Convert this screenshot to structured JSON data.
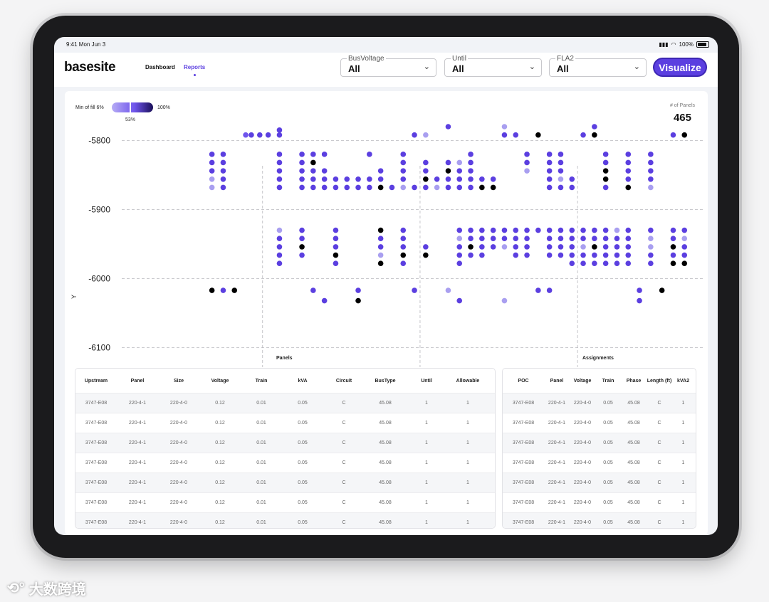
{
  "status": {
    "time": "9:41 Mon Jun 3",
    "battery": "100%"
  },
  "app": {
    "logo": "basesite"
  },
  "nav": [
    {
      "label": "Dashboard",
      "active": false
    },
    {
      "label": "Reports",
      "active": true
    }
  ],
  "filters": [
    {
      "label": "BusVoltage",
      "value": "All"
    },
    {
      "label": "Until",
      "value": "All"
    },
    {
      "label": "FLA2",
      "value": "All"
    }
  ],
  "visualize_label": "Visualize",
  "fill": {
    "min_label": "Min of fill 6%",
    "max_label": "100%",
    "current_label": "53%",
    "current_fraction": 0.53
  },
  "panels_count": {
    "label": "# of Panels",
    "value": "465"
  },
  "colors": {
    "accent": "#5b3fe0",
    "dark": "#3d27b3",
    "mid": "#6f55ec",
    "light": "#a99ff0",
    "black": "#000000"
  },
  "chart_data": {
    "type": "scatter",
    "ylabel": "Y",
    "yticks": [
      -5800,
      -5900,
      -6000,
      -6100
    ],
    "ylim": [
      -6120,
      -5780
    ],
    "xlim": [
      0,
      100
    ],
    "grid": true,
    "columns": [
      {
        "x": 13.5,
        "y": [
          -5820,
          -5832,
          -5844,
          -5856,
          -5868,
          -6017
        ],
        "c": [
          "d",
          "d",
          "d",
          "l",
          "l",
          "k"
        ]
      },
      {
        "x": 15.5,
        "y": [
          -5820,
          -5832,
          -5844,
          -5856,
          -5868,
          -6017
        ],
        "c": [
          "d",
          "d",
          "d",
          "d",
          "d",
          "d"
        ]
      },
      {
        "x": 17.5,
        "y": [
          -6017
        ],
        "c": [
          "k"
        ]
      },
      {
        "x": 19.5,
        "y": [
          -5792
        ],
        "c": [
          "m"
        ]
      },
      {
        "x": 20.5,
        "y": [
          -5792
        ],
        "c": [
          "d"
        ]
      },
      {
        "x": 22,
        "y": [
          -5792
        ],
        "c": [
          "d"
        ]
      },
      {
        "x": 23.5,
        "y": [
          -5792
        ],
        "c": [
          "d"
        ]
      },
      {
        "x": 25.5,
        "y": [
          -5785,
          -5792,
          -5820,
          -5832,
          -5844,
          -5856,
          -5868,
          -5930,
          -5942,
          -5954,
          -5966,
          -5978
        ],
        "c": [
          "d",
          "d",
          "d",
          "d",
          "d",
          "d",
          "d",
          "l",
          "d",
          "d",
          "d",
          "d"
        ]
      },
      {
        "x": 29.5,
        "y": [
          -5820,
          -5832,
          -5844,
          -5856,
          -5868,
          -5930,
          -5942,
          -5954,
          -5966
        ],
        "c": [
          "d",
          "d",
          "d",
          "d",
          "d",
          "d",
          "d",
          "k",
          "d"
        ]
      },
      {
        "x": 31.5,
        "y": [
          -5820,
          -5832,
          -5844,
          -5856,
          -5868,
          -6017
        ],
        "c": [
          "d",
          "k",
          "d",
          "d",
          "d",
          "d"
        ]
      },
      {
        "x": 33.5,
        "y": [
          -5820,
          -5844,
          -5856,
          -5868,
          -6032
        ],
        "c": [
          "d",
          "d",
          "d",
          "d",
          "d"
        ]
      },
      {
        "x": 35.5,
        "y": [
          -5856,
          -5868,
          -5930,
          -5942,
          -5954,
          -5966,
          -5978
        ],
        "c": [
          "d",
          "d",
          "d",
          "d",
          "d",
          "k",
          "d"
        ]
      },
      {
        "x": 37.5,
        "y": [
          -5856,
          -5868
        ],
        "c": [
          "d",
          "d"
        ]
      },
      {
        "x": 39.5,
        "y": [
          -5856,
          -5868,
          -6017,
          -6032
        ],
        "c": [
          "d",
          "d",
          "d",
          "k"
        ]
      },
      {
        "x": 41.5,
        "y": [
          -5820,
          -5856,
          -5868
        ],
        "c": [
          "d",
          "d",
          "d"
        ]
      },
      {
        "x": 43.5,
        "y": [
          -5844,
          -5856,
          -5868,
          -5930,
          -5942,
          -5954,
          -5966,
          -5978
        ],
        "c": [
          "d",
          "d",
          "k",
          "k",
          "d",
          "d",
          "l",
          "k"
        ]
      },
      {
        "x": 45.5,
        "y": [
          -5868
        ],
        "c": [
          "d"
        ]
      },
      {
        "x": 47.5,
        "y": [
          -5820,
          -5832,
          -5844,
          -5856,
          -5868,
          -5930,
          -5942,
          -5954,
          -5966,
          -5978
        ],
        "c": [
          "d",
          "d",
          "d",
          "d",
          "l",
          "d",
          "d",
          "d",
          "k",
          "d"
        ]
      },
      {
        "x": 49.5,
        "y": [
          -5792,
          -5868,
          -6017
        ],
        "c": [
          "d",
          "d",
          "d"
        ]
      },
      {
        "x": 51.5,
        "y": [
          -5792,
          -5832,
          -5844,
          -5856,
          -5868,
          -5954,
          -5966
        ],
        "c": [
          "l",
          "d",
          "d",
          "k",
          "d",
          "d",
          "k"
        ]
      },
      {
        "x": 53.5,
        "y": [
          -5856,
          -5868
        ],
        "c": [
          "d",
          "l"
        ]
      },
      {
        "x": 55.5,
        "y": [
          -5780,
          -5832,
          -5844,
          -5856,
          -5868,
          -6017
        ],
        "c": [
          "d",
          "d",
          "k",
          "d",
          "d",
          "l"
        ]
      },
      {
        "x": 57.5,
        "y": [
          -5832,
          -5844,
          -5856,
          -5868,
          -5930,
          -5942,
          -5954,
          -5966,
          -5978,
          -6032
        ],
        "c": [
          "l",
          "d",
          "d",
          "d",
          "d",
          "l",
          "d",
          "d",
          "d",
          "d"
        ]
      },
      {
        "x": 59.5,
        "y": [
          -5820,
          -5832,
          -5844,
          -5856,
          -5868,
          -5930,
          -5942,
          -5954,
          -5966
        ],
        "c": [
          "d",
          "d",
          "d",
          "d",
          "d",
          "d",
          "d",
          "k",
          "d"
        ]
      },
      {
        "x": 61.5,
        "y": [
          -5856,
          -5868,
          -5930,
          -5942,
          -5954,
          -5966
        ],
        "c": [
          "d",
          "k",
          "d",
          "d",
          "d",
          "d"
        ]
      },
      {
        "x": 63.5,
        "y": [
          -5856,
          -5868,
          -5930,
          -5942,
          -5954
        ],
        "c": [
          "d",
          "k",
          "d",
          "d",
          "d"
        ]
      },
      {
        "x": 65.5,
        "y": [
          -5780,
          -5792,
          -5930,
          -5942,
          -5954,
          -6032
        ],
        "c": [
          "l",
          "d",
          "d",
          "d",
          "l",
          "l"
        ]
      },
      {
        "x": 67.5,
        "y": [
          -5792,
          -5930,
          -5942,
          -5954,
          -5966
        ],
        "c": [
          "d",
          "d",
          "d",
          "d",
          "d"
        ]
      },
      {
        "x": 69.5,
        "y": [
          -5820,
          -5832,
          -5844,
          -5930,
          -5942,
          -5954,
          -5966
        ],
        "c": [
          "d",
          "d",
          "l",
          "d",
          "d",
          "d",
          "d"
        ]
      },
      {
        "x": 71.5,
        "y": [
          -5792,
          -5930,
          -6017
        ],
        "c": [
          "k",
          "d",
          "d"
        ]
      },
      {
        "x": 73.5,
        "y": [
          -5820,
          -5832,
          -5844,
          -5856,
          -5868,
          -5930,
          -5942,
          -5954,
          -5966,
          -6017
        ],
        "c": [
          "d",
          "d",
          "d",
          "d",
          "d",
          "d",
          "d",
          "d",
          "d",
          "d"
        ]
      },
      {
        "x": 75.5,
        "y": [
          -5820,
          -5832,
          -5844,
          -5856,
          -5868,
          -5930,
          -5942,
          -5954,
          -5966
        ],
        "c": [
          "d",
          "d",
          "d",
          "l",
          "d",
          "d",
          "d",
          "d",
          "d"
        ]
      },
      {
        "x": 77.5,
        "y": [
          -5856,
          -5868,
          -5930,
          -5942,
          -5954,
          -5966,
          -5978
        ],
        "c": [
          "d",
          "d",
          "d",
          "d",
          "d",
          "d",
          "d"
        ]
      },
      {
        "x": 79.5,
        "y": [
          -5792,
          -5930,
          -5942,
          -5954,
          -5966,
          -5978
        ],
        "c": [
          "d",
          "d",
          "d",
          "l",
          "d",
          "d"
        ]
      },
      {
        "x": 81.5,
        "y": [
          -5780,
          -5792,
          -5930,
          -5942,
          -5954,
          -5966,
          -5978
        ],
        "c": [
          "d",
          "k",
          "d",
          "d",
          "k",
          "d",
          "d"
        ]
      },
      {
        "x": 83.5,
        "y": [
          -5820,
          -5832,
          -5844,
          -5856,
          -5868,
          -5930,
          -5942,
          -5954,
          -5966,
          -5978
        ],
        "c": [
          "d",
          "d",
          "k",
          "k",
          "d",
          "d",
          "d",
          "d",
          "d",
          "d"
        ]
      },
      {
        "x": 85.5,
        "y": [
          -5930,
          -5942,
          -5954,
          -5966,
          -5978
        ],
        "c": [
          "l",
          "d",
          "d",
          "d",
          "d"
        ]
      },
      {
        "x": 87.5,
        "y": [
          -5820,
          -5832,
          -5844,
          -5856,
          -5868,
          -5930,
          -5942,
          -5954,
          -5966,
          -5978
        ],
        "c": [
          "d",
          "d",
          "d",
          "d",
          "k",
          "d",
          "d",
          "d",
          "d",
          "d"
        ]
      },
      {
        "x": 89.5,
        "y": [
          -6017,
          -6032
        ],
        "c": [
          "d",
          "d"
        ]
      },
      {
        "x": 91.5,
        "y": [
          -5820,
          -5832,
          -5844,
          -5856,
          -5868,
          -5930,
          -5942,
          -5954,
          -5966,
          -5978
        ],
        "c": [
          "d",
          "d",
          "d",
          "d",
          "l",
          "d",
          "l",
          "l",
          "d",
          "d"
        ]
      },
      {
        "x": 93.5,
        "y": [
          -6017
        ],
        "c": [
          "k"
        ]
      },
      {
        "x": 95.5,
        "y": [
          -5792,
          -5930,
          -5942,
          -5954,
          -5966,
          -5978
        ],
        "c": [
          "d",
          "d",
          "d",
          "k",
          "d",
          "k"
        ]
      },
      {
        "x": 97.5,
        "y": [
          -5792,
          -5930,
          -5942,
          -5954,
          -5966,
          -5978
        ],
        "c": [
          "k",
          "d",
          "l",
          "d",
          "d",
          "k"
        ]
      }
    ],
    "vlines_x": [
      22.5,
      50.5,
      78.5
    ],
    "section_labels": [
      "Panels",
      "Assignments"
    ]
  },
  "panels_table": {
    "title": "Panels",
    "columns": [
      "Upstream",
      "Panel",
      "Size",
      "Voltage",
      "Train",
      "kVA",
      "Circuit",
      "BusType",
      "Until",
      "Allowable"
    ],
    "rows": [
      [
        "3747-E08",
        "220-4-1",
        "220-4-0",
        "0.12",
        "0.01",
        "0.05",
        "C",
        "45.08",
        "1",
        "1"
      ],
      [
        "3747-E08",
        "220-4-1",
        "220-4-0",
        "0.12",
        "0.01",
        "0.05",
        "C",
        "45.08",
        "1",
        "1"
      ],
      [
        "3747-E08",
        "220-4-1",
        "220-4-0",
        "0.12",
        "0.01",
        "0.05",
        "C",
        "45.08",
        "1",
        "1"
      ],
      [
        "3747-E08",
        "220-4-1",
        "220-4-0",
        "0.12",
        "0.01",
        "0.05",
        "C",
        "45.08",
        "1",
        "1"
      ],
      [
        "3747-E08",
        "220-4-1",
        "220-4-0",
        "0.12",
        "0.01",
        "0.05",
        "C",
        "45.08",
        "1",
        "1"
      ],
      [
        "3747-E08",
        "220-4-1",
        "220-4-0",
        "0.12",
        "0.01",
        "0.05",
        "C",
        "45.08",
        "1",
        "1"
      ],
      [
        "3747-E08",
        "220-4-1",
        "220-4-0",
        "0.12",
        "0.01",
        "0.05",
        "C",
        "45.08",
        "1",
        "1"
      ]
    ]
  },
  "assignments_table": {
    "title": "Assignments",
    "columns": [
      "POC",
      "Panel",
      "Voltage",
      "Train",
      "Phase",
      "Length (ft)",
      "kVA2"
    ],
    "rows": [
      [
        "3747-E08",
        "220-4-1",
        "220-4-0",
        "0.05",
        "45.08",
        "C",
        "1"
      ],
      [
        "3747-E08",
        "220-4-1",
        "220-4-0",
        "0.05",
        "45.08",
        "C",
        "1"
      ],
      [
        "3747-E08",
        "220-4-1",
        "220-4-0",
        "0.05",
        "45.08",
        "C",
        "1"
      ],
      [
        "3747-E08",
        "220-4-1",
        "220-4-0",
        "0.05",
        "45.08",
        "C",
        "1"
      ],
      [
        "3747-E08",
        "220-4-1",
        "220-4-0",
        "0.05",
        "45.08",
        "C",
        "1"
      ],
      [
        "3747-E08",
        "220-4-1",
        "220-4-0",
        "0.05",
        "45.08",
        "C",
        "1"
      ],
      [
        "3747-E08",
        "220-4-1",
        "220-4-0",
        "0.05",
        "45.08",
        "C",
        "1"
      ]
    ]
  },
  "watermark": "大数跨境"
}
